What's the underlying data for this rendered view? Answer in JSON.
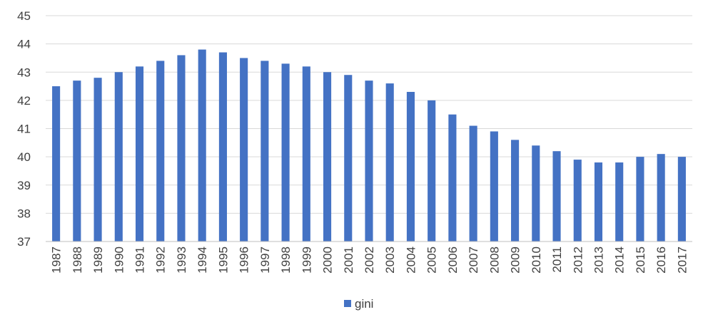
{
  "chart_data": {
    "type": "bar",
    "categories": [
      "1987",
      "1988",
      "1989",
      "1990",
      "1991",
      "1992",
      "1993",
      "1994",
      "1995",
      "1996",
      "1997",
      "1998",
      "1999",
      "2000",
      "2001",
      "2002",
      "2003",
      "2004",
      "2005",
      "2006",
      "2007",
      "2008",
      "2009",
      "2010",
      "2011",
      "2012",
      "2013",
      "2014",
      "2015",
      "2016",
      "2017"
    ],
    "series": [
      {
        "name": "gini",
        "color": "#4472C4",
        "values": [
          42.5,
          42.7,
          42.8,
          43.0,
          43.2,
          43.4,
          43.6,
          43.8,
          43.7,
          43.5,
          43.4,
          43.3,
          43.2,
          43.0,
          42.9,
          42.7,
          42.6,
          42.3,
          42.0,
          41.5,
          41.1,
          40.9,
          40.6,
          40.4,
          40.2,
          39.9,
          39.8,
          39.8,
          40.0,
          40.1,
          40.0
        ]
      }
    ],
    "yticks": [
      "37",
      "38",
      "39",
      "40",
      "41",
      "42",
      "43",
      "44",
      "45"
    ],
    "ylim": [
      37,
      45
    ],
    "grid": true,
    "legend_position": "bottom",
    "title": "",
    "xlabel": "",
    "ylabel": "",
    "gridline_color": "#D9D9D9",
    "axis_color": "#BFBFBF"
  }
}
